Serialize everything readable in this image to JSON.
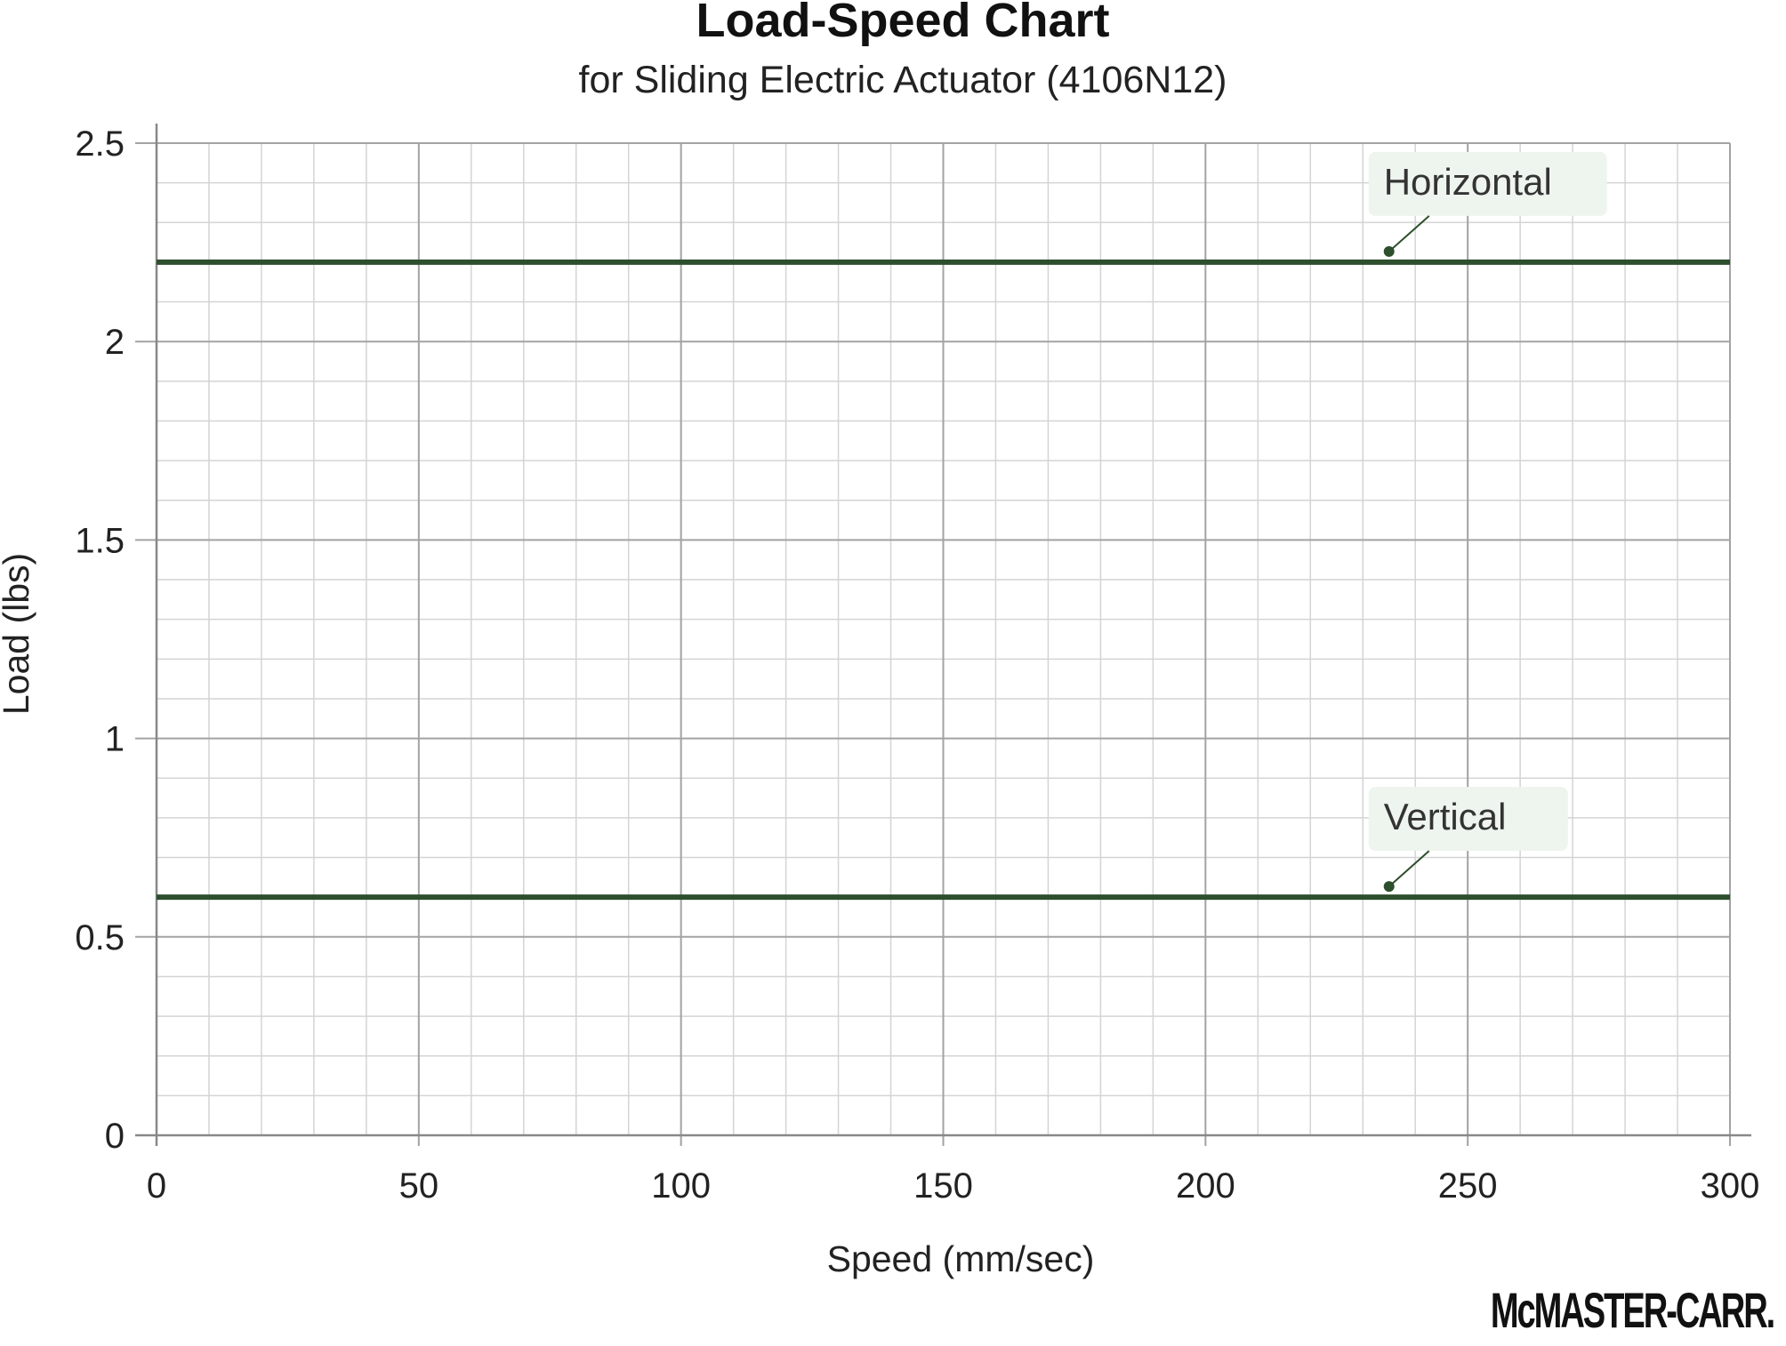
{
  "chart_data": {
    "type": "line",
    "title": "Load-Speed Chart",
    "subtitle": "for Sliding Electric Actuator (4106N12)",
    "xlabel": "Speed (mm/sec)",
    "ylabel": "Load (lbs)",
    "xlim": [
      0,
      300
    ],
    "ylim": [
      0,
      2.5
    ],
    "x_ticks": [
      "0",
      "50",
      "100",
      "150",
      "200",
      "250",
      "300"
    ],
    "y_ticks": [
      "0",
      "0.5",
      "1",
      "1.5",
      "2",
      "2.5"
    ],
    "grid": true,
    "series": [
      {
        "name": "Horizontal",
        "x": [
          0,
          300
        ],
        "y": [
          2.2,
          2.2
        ],
        "label_at_x": 235
      },
      {
        "name": "Vertical",
        "x": [
          0,
          300
        ],
        "y": [
          0.6,
          0.6
        ],
        "label_at_x": 235
      }
    ],
    "colors": {
      "line": "#2d4f2d",
      "label_bg": "#eef4ee",
      "grid_major": "#a3a3a3",
      "grid_minor": "#d4d4d4"
    }
  },
  "brand": {
    "logo_text": "McMASTER-CARR."
  }
}
